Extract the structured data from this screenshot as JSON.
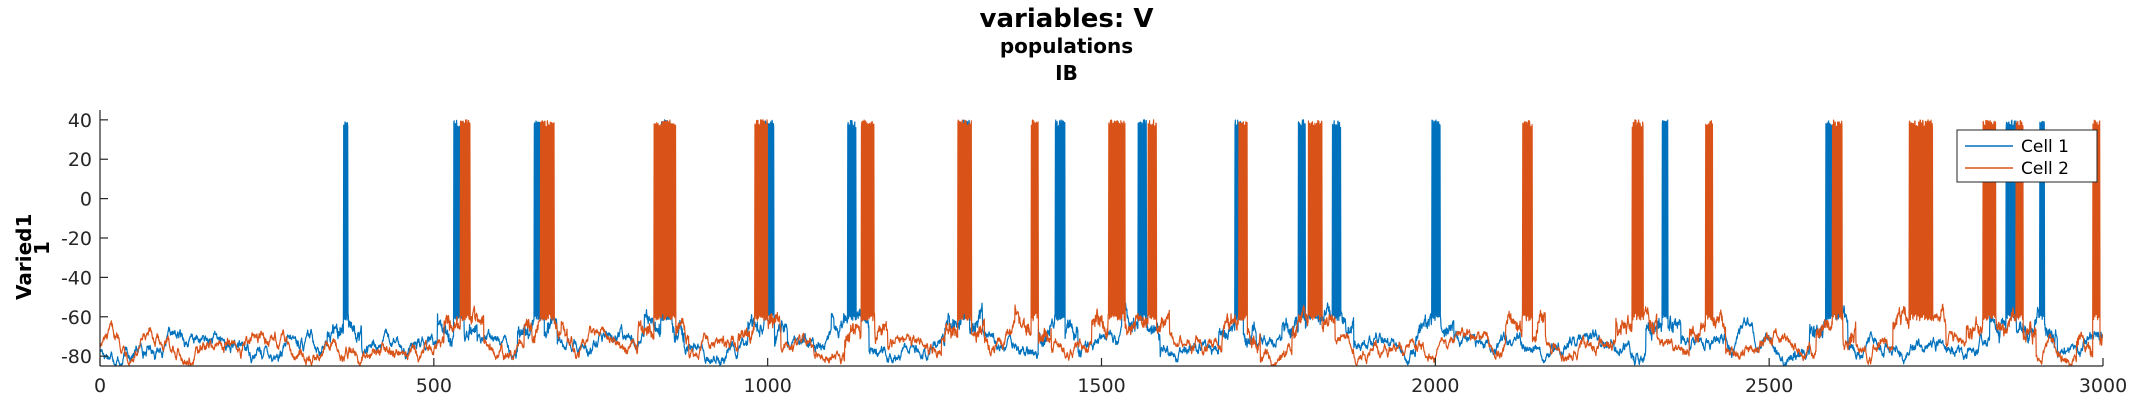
{
  "chart_data": {
    "type": "line",
    "title": "variables: V",
    "subtitle_lines": [
      "populations",
      "IB"
    ],
    "ylabel_lines": [
      "Varied1",
      "1"
    ],
    "xlabel": "",
    "xlim": [
      0,
      3000
    ],
    "ylim": [
      -85,
      45
    ],
    "xticks": [
      0,
      500,
      1000,
      1500,
      2000,
      2500,
      3000
    ],
    "yticks": [
      -80,
      -60,
      -40,
      -20,
      0,
      20,
      40
    ],
    "grid": false,
    "legend_position": "top-right",
    "baseline_approx": -75,
    "spike_peak_approx": 40,
    "burst_plateau_approx": -55,
    "series": [
      {
        "name": "Cell 1",
        "color": "#0072BD",
        "bursts": [
          [
            365,
            372
          ],
          [
            530,
            545
          ],
          [
            650,
            665
          ],
          [
            840,
            855
          ],
          [
            995,
            1010
          ],
          [
            1120,
            1132
          ],
          [
            1290,
            1302
          ],
          [
            1430,
            1445
          ],
          [
            1555,
            1568
          ],
          [
            1700,
            1712
          ],
          [
            1795,
            1805
          ],
          [
            1845,
            1858
          ],
          [
            1995,
            2008
          ],
          [
            2340,
            2348
          ],
          [
            2585,
            2598
          ],
          [
            2855,
            2870
          ],
          [
            2905,
            2912
          ]
        ]
      },
      {
        "name": "Cell 2",
        "color": "#D95319",
        "bursts": [
          [
            540,
            555
          ],
          [
            660,
            680
          ],
          [
            830,
            862
          ],
          [
            980,
            1000
          ],
          [
            1140,
            1160
          ],
          [
            1285,
            1305
          ],
          [
            1395,
            1405
          ],
          [
            1510,
            1535
          ],
          [
            1570,
            1582
          ],
          [
            1705,
            1718
          ],
          [
            1810,
            1830
          ],
          [
            2130,
            2145
          ],
          [
            2295,
            2312
          ],
          [
            2405,
            2415
          ],
          [
            2595,
            2610
          ],
          [
            2710,
            2745
          ],
          [
            2820,
            2840
          ],
          [
            2870,
            2880
          ],
          [
            2985,
            2995
          ]
        ]
      }
    ]
  }
}
